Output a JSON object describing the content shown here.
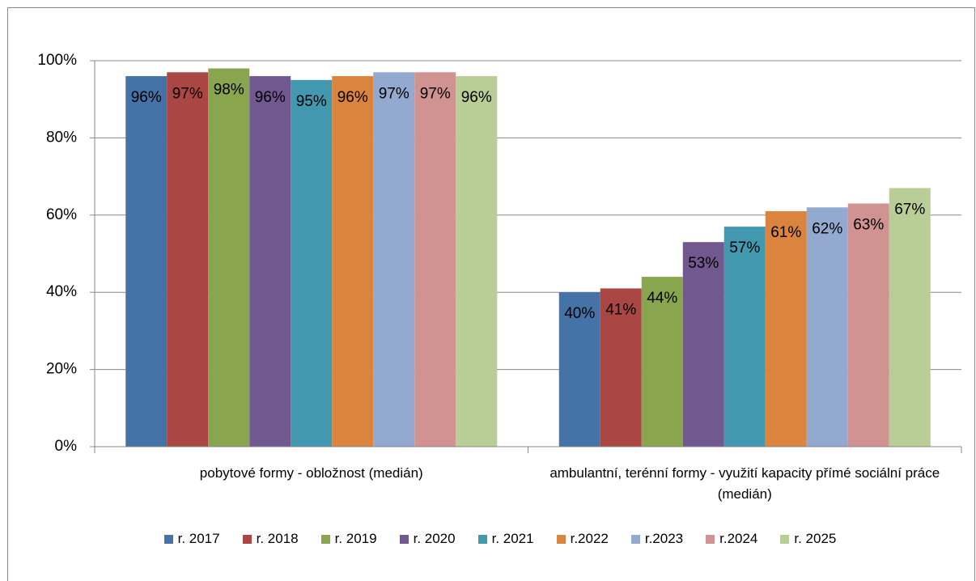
{
  "chart_data": {
    "type": "bar",
    "categories": [
      "pobytové formy - obložnost (medián)",
      "ambulantní, terénní formy - využití kapacity přímé sociální práce (medián)"
    ],
    "series": [
      {
        "name": "r. 2017",
        "color": "#4572A7",
        "values": [
          96,
          40
        ],
        "value_labels": [
          "96%",
          "40%"
        ]
      },
      {
        "name": "r. 2018",
        "color": "#AA4643",
        "values": [
          97,
          41
        ],
        "value_labels": [
          "97%",
          "41%"
        ]
      },
      {
        "name": "r. 2019",
        "color": "#89A54E",
        "values": [
          98,
          44
        ],
        "value_labels": [
          "98%",
          "44%"
        ]
      },
      {
        "name": "r. 2020",
        "color": "#71588F",
        "values": [
          96,
          53
        ],
        "value_labels": [
          "96%",
          "53%"
        ]
      },
      {
        "name": "r. 2021",
        "color": "#4198AF",
        "values": [
          95,
          57
        ],
        "value_labels": [
          "95%",
          "57%"
        ]
      },
      {
        "name": "r.2022",
        "color": "#DB843D",
        "values": [
          96,
          61
        ],
        "value_labels": [
          "96%",
          "61%"
        ]
      },
      {
        "name": "r.2023",
        "color": "#93A9CF",
        "values": [
          97,
          62
        ],
        "value_labels": [
          "97%",
          "62%"
        ]
      },
      {
        "name": "r.2024",
        "color": "#D19392",
        "values": [
          97,
          63
        ],
        "value_labels": [
          "97%",
          "63%"
        ]
      },
      {
        "name": "r. 2025",
        "color": "#B9CD96",
        "values": [
          96,
          67
        ],
        "value_labels": [
          "96%",
          "67%"
        ]
      }
    ],
    "ylim": [
      0,
      100
    ],
    "yticks": [
      {
        "value": 0,
        "label": "0%"
      },
      {
        "value": 20,
        "label": "20%"
      },
      {
        "value": 40,
        "label": "40%"
      },
      {
        "value": 60,
        "label": "60%"
      },
      {
        "value": 80,
        "label": "80%"
      },
      {
        "value": 100,
        "label": "100%"
      }
    ],
    "grid": true,
    "legend": "bottom"
  }
}
